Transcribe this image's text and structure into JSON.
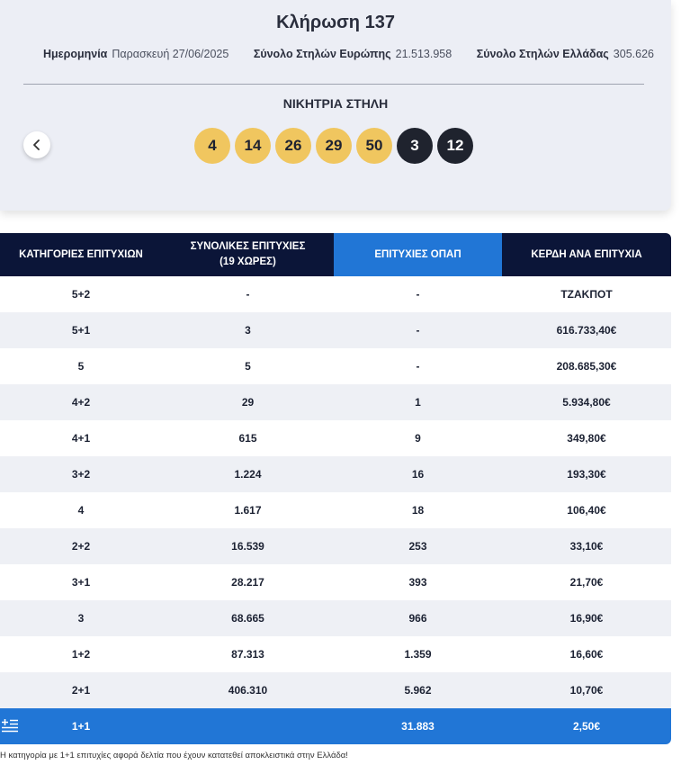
{
  "draw": {
    "title": "Κλήρωση 137",
    "date_label": "Ημερομηνία",
    "date_value": "Παρασκευή 27/06/2025",
    "europe_label": "Σύνολο Στηλών Ευρώπης",
    "europe_value": "21.513.958",
    "greece_label": "Σύνολο Στηλών Ελλάδας",
    "greece_value": "305.626",
    "winning_label": "ΝΙΚΗΤΡΙΑ ΣΤΗΛΗ",
    "prev_icon": "chevron-left-icon",
    "main_numbers": [
      "4",
      "14",
      "26",
      "29",
      "50"
    ],
    "bonus_numbers": [
      "3",
      "12"
    ],
    "colors": {
      "main_ball": "#f0c65f",
      "bonus_ball": "#1f232e",
      "accent": "#2176d6",
      "header": "#0b1538"
    }
  },
  "table": {
    "headers": {
      "categories": "ΚΑΤΗΓΟΡΙΕΣ ΕΠΙΤΥΧΙΩΝ",
      "total_line1": "ΣΥΝΟΛΙΚΕΣ ΕΠΙΤΥΧΙΕΣ",
      "total_line2": "(19 ΧΩΡΕΣ)",
      "opap": "ΕΠΙΤΥΧΙΕΣ ΟΠΑΠ",
      "prize": "ΚΕΡΔΗ ΑΝΑ ΕΠΙΤΥΧΙΑ"
    },
    "rows": [
      {
        "cat": "5+2",
        "total": "-",
        "opap": "-",
        "prize": "ΤΖΑΚΠΟΤ"
      },
      {
        "cat": "5+1",
        "total": "3",
        "opap": "-",
        "prize": "616.733,40€"
      },
      {
        "cat": "5",
        "total": "5",
        "opap": "-",
        "prize": "208.685,30€"
      },
      {
        "cat": "4+2",
        "total": "29",
        "opap": "1",
        "prize": "5.934,80€"
      },
      {
        "cat": "4+1",
        "total": "615",
        "opap": "9",
        "prize": "349,80€"
      },
      {
        "cat": "3+2",
        "total": "1.224",
        "opap": "16",
        "prize": "193,30€"
      },
      {
        "cat": "4",
        "total": "1.617",
        "opap": "18",
        "prize": "106,40€"
      },
      {
        "cat": "2+2",
        "total": "16.539",
        "opap": "253",
        "prize": "33,10€"
      },
      {
        "cat": "3+1",
        "total": "28.217",
        "opap": "393",
        "prize": "21,70€"
      },
      {
        "cat": "3",
        "total": "68.665",
        "opap": "966",
        "prize": "16,90€"
      },
      {
        "cat": "1+2",
        "total": "87.313",
        "opap": "1.359",
        "prize": "16,60€"
      },
      {
        "cat": "2+1",
        "total": "406.310",
        "opap": "5.962",
        "prize": "10,70€"
      }
    ],
    "greece_row": {
      "icon": "greek-flag-icon",
      "cat": "1+1",
      "total": "",
      "opap": "31.883",
      "prize": "2,50€"
    }
  },
  "footnote": "Η κατηγορία με 1+1 επιτυχίες αφορά δελτία που έχουν κατατεθεί αποκλειστικά στην Ελλάδα!"
}
